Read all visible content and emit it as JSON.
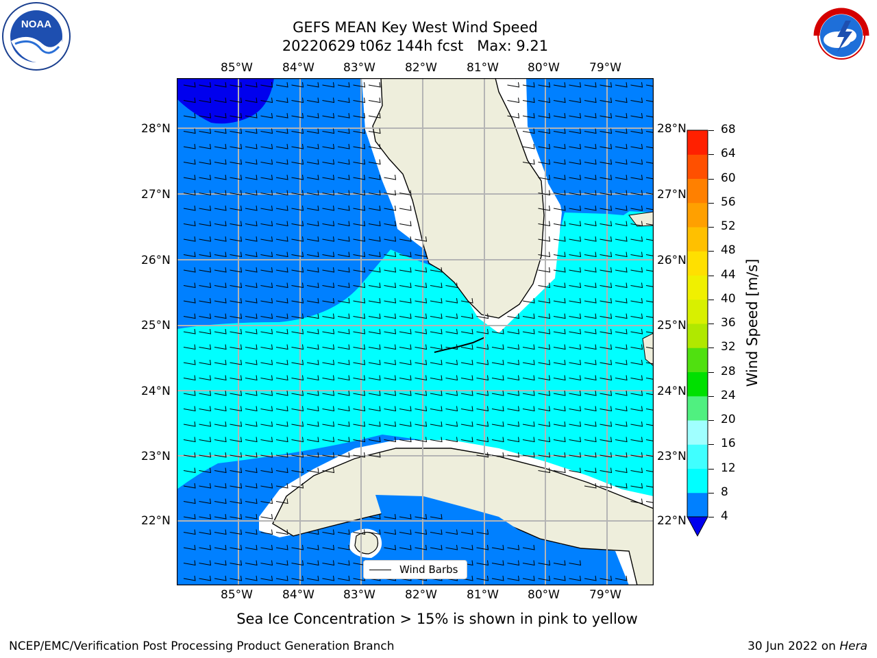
{
  "header": {
    "title_line1": "GEFS MEAN Key West Wind Speed",
    "title_line2": "20220629 t06z 144h fcst   Max: 9.21"
  },
  "logos": {
    "left": "NOAA",
    "right": "NATIONAL WEATHER SERVICE"
  },
  "map": {
    "lon_labels": [
      "85°W",
      "84°W",
      "83°W",
      "82°W",
      "81°W",
      "80°W",
      "79°W"
    ],
    "lat_labels": [
      "28°N",
      "27°N",
      "26°N",
      "25°N",
      "24°N",
      "23°N",
      "22°N"
    ],
    "legend_label": "Wind Barbs",
    "colors": {
      "dark_blue": "#0000ee",
      "blue": "#0080ff",
      "cyan": "#00ffff",
      "land": "#eeeedc",
      "grid": "#b4b4b4"
    },
    "max_wind_speed": 9.21
  },
  "colorbar": {
    "label": "Wind Speed [m/s]",
    "ticks": [
      "68",
      "64",
      "60",
      "56",
      "52",
      "48",
      "44",
      "40",
      "36",
      "32",
      "28",
      "24",
      "20",
      "16",
      "12",
      "8",
      "4"
    ],
    "bins": [
      {
        "from": 4,
        "to": 8,
        "color": "#0080ff"
      },
      {
        "from": 8,
        "to": 12,
        "color": "#00ffff"
      },
      {
        "from": 12,
        "to": 16,
        "color": "#40ffff"
      },
      {
        "from": 16,
        "to": 20,
        "color": "#a0ffff"
      },
      {
        "from": 20,
        "to": 24,
        "color": "#50f080"
      },
      {
        "from": 24,
        "to": 28,
        "color": "#00e000"
      },
      {
        "from": 28,
        "to": 32,
        "color": "#50e010"
      },
      {
        "from": 32,
        "to": 36,
        "color": "#b0e800"
      },
      {
        "from": 36,
        "to": 40,
        "color": "#d8f000"
      },
      {
        "from": 40,
        "to": 44,
        "color": "#f0f000"
      },
      {
        "from": 44,
        "to": 48,
        "color": "#ffe000"
      },
      {
        "from": 48,
        "to": 52,
        "color": "#ffc000"
      },
      {
        "from": 52,
        "to": 56,
        "color": "#ffa000"
      },
      {
        "from": 56,
        "to": 60,
        "color": "#ff8000"
      },
      {
        "from": 60,
        "to": 64,
        "color": "#ff5000"
      },
      {
        "from": 64,
        "to": 68,
        "color": "#ff2000"
      }
    ],
    "under_color": "#0000ee"
  },
  "caption": "Sea Ice Concentration > 15% is shown in pink to yellow",
  "footer": {
    "left": "NCEP/EMC/Verification Post Processing Product Generation Branch",
    "date": "30 Jun 2022 on ",
    "machine": "Hera"
  }
}
